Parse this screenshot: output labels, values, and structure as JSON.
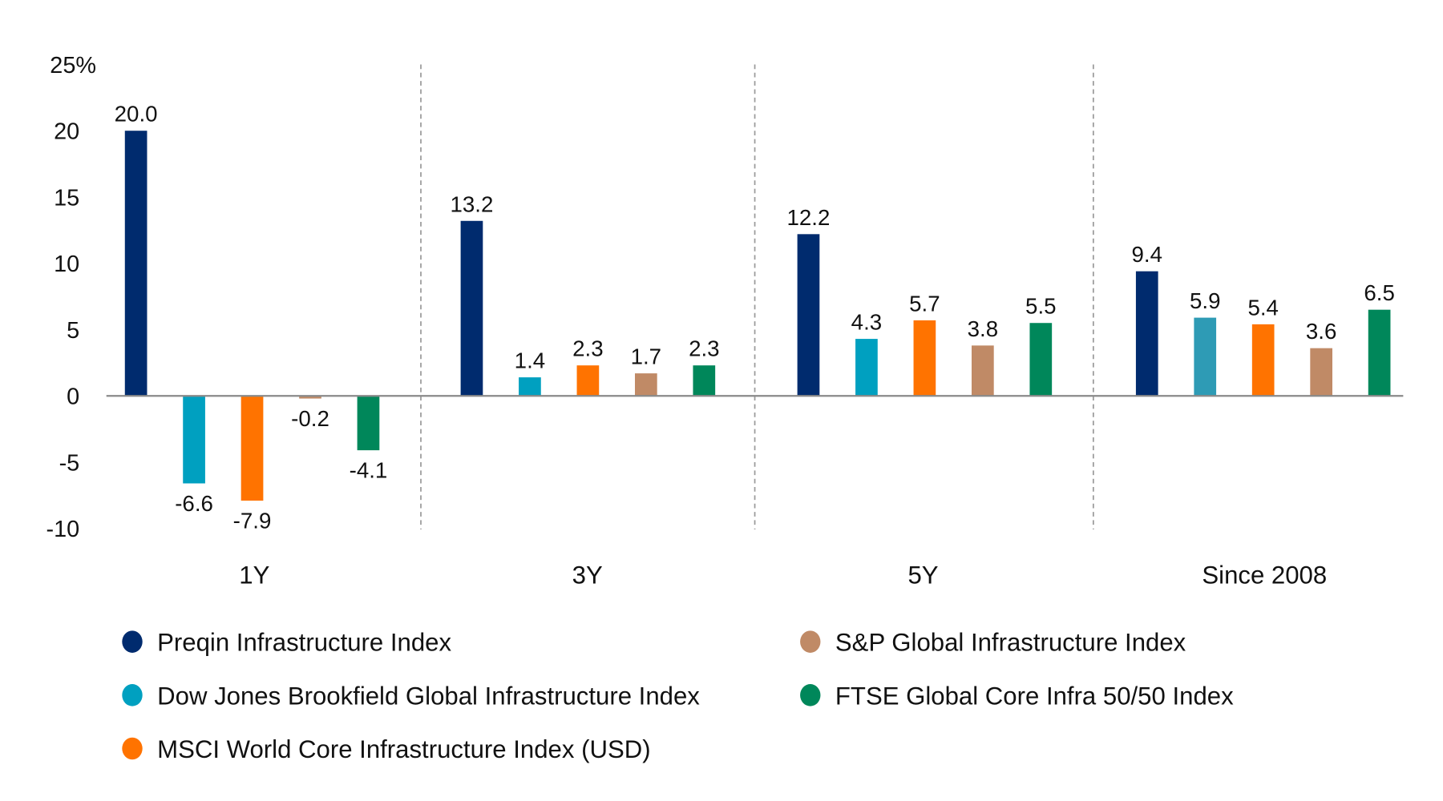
{
  "chart_data": {
    "type": "bar",
    "ylabel": "",
    "y_unit_label": "25%",
    "ylim": [
      -10,
      25
    ],
    "yticks": [
      "25%",
      "20",
      "15",
      "10",
      "5",
      "0",
      "-5",
      "-10"
    ],
    "ytick_values": [
      25,
      20,
      15,
      10,
      5,
      0,
      -5,
      -10
    ],
    "grid": false,
    "legend_placement": "bottom",
    "categories": [
      "1Y",
      "3Y",
      "5Y",
      "Since 2008"
    ],
    "series": [
      {
        "name": "Preqin Infrastructure Index",
        "color": "#002b6e",
        "values": [
          20.0,
          13.2,
          12.2,
          9.4
        ],
        "labels": [
          "20.0",
          "13.2",
          "12.2",
          "9.4"
        ]
      },
      {
        "name": "Dow Jones Brookfield Global Infrastructure Index",
        "color": "#00a0c0",
        "values": [
          -6.6,
          1.4,
          4.3,
          5.9
        ],
        "labels": [
          "-6.6",
          "1.4",
          "4.3",
          "5.9"
        ]
      },
      {
        "name": "MSCI World Core Infrastructure Index (USD)",
        "color": "#ff7300",
        "values": [
          -7.9,
          2.3,
          5.7,
          5.4
        ],
        "labels": [
          "-7.9",
          "2.3",
          "5.7",
          "5.4"
        ]
      },
      {
        "name": "S&P Global Infrastructure Index",
        "color": "#c08a66",
        "values": [
          -0.2,
          1.7,
          3.8,
          3.6
        ],
        "labels": [
          "-0.2",
          "1.7",
          "3.8",
          "3.6"
        ]
      },
      {
        "name": "FTSE Global Core Infra 50/50 Index",
        "color": "#00875a",
        "values": [
          -4.1,
          2.3,
          5.5,
          6.5
        ],
        "labels": [
          "-4.1",
          "2.3",
          "5.5",
          "6.5"
        ]
      }
    ]
  }
}
